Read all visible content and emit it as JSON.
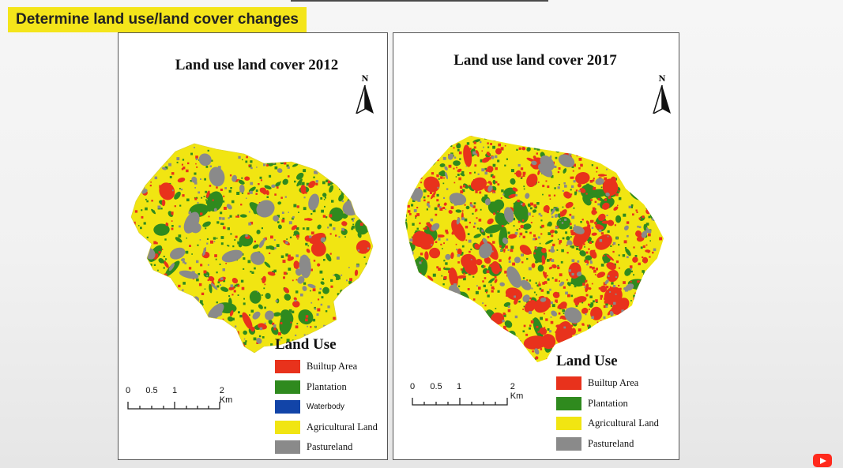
{
  "slide": {
    "title": "Determine land use/land cover changes"
  },
  "colors": {
    "builtup": "#e8321c",
    "plantation": "#2f8a1e",
    "waterbody": "#1244a8",
    "agricultural": "#f1e512",
    "pastureland": "#8a8a8a",
    "title_highlight": "#f4e51a"
  },
  "maps": [
    {
      "title": "Land use land cover 2012",
      "north_label": "N",
      "legend_title": "Land Use",
      "legend": [
        {
          "label": "Builtup Area",
          "color": "#e8321c"
        },
        {
          "label": "Plantation",
          "color": "#2f8a1e"
        },
        {
          "label": "Waterbody",
          "color": "#1244a8"
        },
        {
          "label": "Agricultural Land",
          "color": "#f1e512"
        },
        {
          "label": "Pastureland",
          "color": "#8a8a8a"
        }
      ],
      "scale": {
        "ticks": [
          "0",
          "0.5",
          "1",
          "2 Km"
        ]
      },
      "class_mix": {
        "agricultural": 0.58,
        "plantation": 0.2,
        "builtup": 0.12,
        "pastureland": 0.1
      }
    },
    {
      "title": "Land use land cover 2017",
      "north_label": "N",
      "legend_title": "Land Use",
      "legend": [
        {
          "label": "Builtup Area",
          "color": "#e8321c"
        },
        {
          "label": "Plantation",
          "color": "#2f8a1e"
        },
        {
          "label": "Agricultural Land",
          "color": "#f1e512"
        },
        {
          "label": "Pastureland",
          "color": "#8a8a8a"
        }
      ],
      "scale": {
        "ticks": [
          "0",
          "0.5",
          "1",
          "2 Km"
        ]
      },
      "class_mix": {
        "agricultural": 0.38,
        "plantation": 0.22,
        "builtup": 0.3,
        "pastureland": 0.1
      }
    }
  ]
}
